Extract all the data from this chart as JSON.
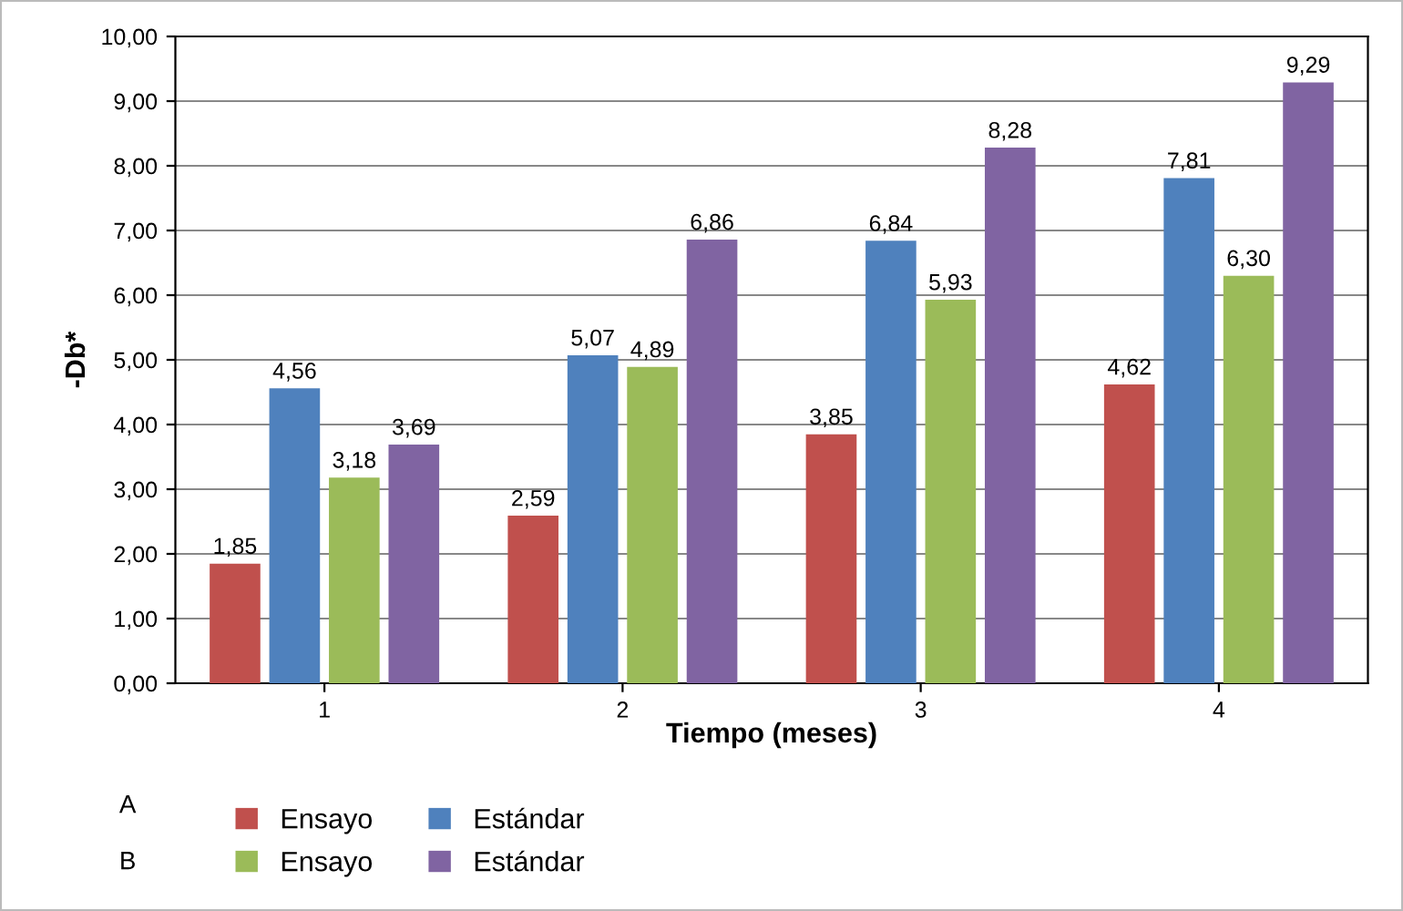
{
  "chart_data": {
    "type": "bar",
    "xlabel": "Tiempo (meses)",
    "ylabel": "-Db*",
    "categories": [
      "1",
      "2",
      "3",
      "4"
    ],
    "series": [
      {
        "name": "Ensayo",
        "color": "#c0504d",
        "values": [
          1.85,
          2.59,
          3.85,
          4.62
        ],
        "value_labels": [
          "1,85",
          "2,59",
          "3,85",
          "4,62"
        ]
      },
      {
        "name": "Estándar",
        "color": "#4f81bd",
        "values": [
          4.56,
          5.07,
          6.84,
          7.81
        ],
        "value_labels": [
          "4,56",
          "5,07",
          "6,84",
          "7,81"
        ]
      },
      {
        "name": "Ensayo",
        "color": "#9bbb59",
        "values": [
          3.18,
          4.89,
          5.93,
          6.3
        ],
        "value_labels": [
          "3,18",
          "4,89",
          "5,93",
          "6,30"
        ]
      },
      {
        "name": "Estándar",
        "color": "#8064a2",
        "values": [
          3.69,
          6.86,
          8.28,
          9.29
        ],
        "value_labels": [
          "3,69",
          "6,86",
          "8,28",
          "9,29"
        ]
      }
    ],
    "annotations": [
      "A",
      "B"
    ],
    "ylim": [
      0,
      10
    ],
    "yticks": [
      {
        "value": 0,
        "label": "0,00"
      },
      {
        "value": 1,
        "label": "1,00"
      },
      {
        "value": 2,
        "label": "2,00"
      },
      {
        "value": 3,
        "label": "3,00"
      },
      {
        "value": 4,
        "label": "4,00"
      },
      {
        "value": 5,
        "label": "5,00"
      },
      {
        "value": 6,
        "label": "6,00"
      },
      {
        "value": 7,
        "label": "7,00"
      },
      {
        "value": 8,
        "label": "8,00"
      },
      {
        "value": 9,
        "label": "9,00"
      },
      {
        "value": 10,
        "label": "10,00"
      }
    ],
    "grid": "y",
    "legend": "bottom left"
  }
}
